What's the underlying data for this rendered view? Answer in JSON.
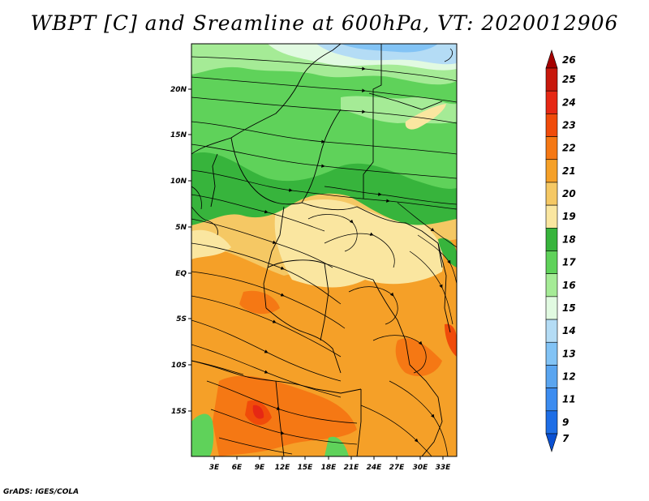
{
  "title": "WBPT [C] and Sreamline at 600hPa, VT: 2020012906",
  "credit": "GrADS: IGES/COLA",
  "map": {
    "lat_ticks": [
      "20N",
      "15N",
      "10N",
      "5N",
      "EQ",
      "5S",
      "10S",
      "15S"
    ],
    "lon_ticks": [
      "3E",
      "6E",
      "9E",
      "12E",
      "15E",
      "18E",
      "21E",
      "24E",
      "27E",
      "30E",
      "33E"
    ]
  },
  "colorbar": {
    "labels": [
      "26",
      "25",
      "24",
      "23",
      "22",
      "21",
      "20",
      "19",
      "18",
      "17",
      "16",
      "15",
      "14",
      "13",
      "12",
      "11",
      "9",
      "7"
    ],
    "colors": [
      "#a50000",
      "#c8180c",
      "#e62814",
      "#f04b0a",
      "#f57814",
      "#f5a028",
      "#f5c864",
      "#fae6a0",
      "#37b43c",
      "#5fd25a",
      "#a5eb96",
      "#e1fae1",
      "#b4dcf5",
      "#82c3f5",
      "#5aa5f0",
      "#3c8cf0",
      "#1e6ee6",
      "#0a50d2"
    ]
  }
}
